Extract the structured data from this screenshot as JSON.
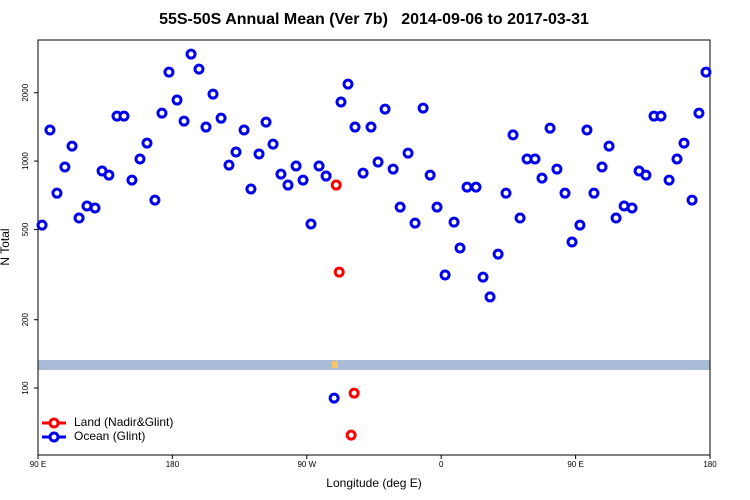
{
  "chart_data": {
    "type": "scatter",
    "title": "55S-50S Annual Mean (Ver 7b)   2014-09-06 to 2017-03-31",
    "xlabel": "Longitude (deg E)",
    "ylabel": "N Total",
    "xlim": [
      90,
      540
    ],
    "xticks": [
      {
        "value": 90,
        "label": "90 E"
      },
      180,
      {
        "value": 270,
        "label": "90 W"
      },
      {
        "value": 360,
        "label": "0"
      },
      {
        "value": 450,
        "label": "90 E"
      },
      {
        "value": 540,
        "label": "180"
      }
    ],
    "ylim": [
      50.7,
      3415
    ],
    "yticks": [
      100,
      200,
      500,
      1000,
      2000
    ],
    "ylog": true,
    "legend": "lower left",
    "series": [
      {
        "name": "Land (Nadir&Glint)",
        "color": "#ff0000",
        "x": [
          289.7,
          291.7,
          301.7,
          299.7
        ],
        "values": [
          784,
          324,
          95,
          62
        ]
      },
      {
        "name": "Ocean (Glint)",
        "color": "#0000ee",
        "x": [
          92.7,
          98,
          102.7,
          108,
          112.8,
          117.5,
          122.8,
          128.2,
          132.9,
          137.5,
          142.9,
          147.6,
          152.9,
          158.3,
          163,
          168.3,
          173,
          177.7,
          183.1,
          187.8,
          192.5,
          197.8,
          202.5,
          207.2,
          212.6,
          217.9,
          222.6,
          228,
          232.6,
          238,
          242.7,
          247.4,
          252.7,
          257.4,
          262.8,
          267.5,
          272.8,
          278.2,
          282.9,
          292.9,
          297.6,
          302.3,
          307.7,
          313,
          317.7,
          322.4,
          327.8,
          332.5,
          337.8,
          342.5,
          347.9,
          352.6,
          357.2,
          362.6,
          368.6,
          372.6,
          377.3,
          383.3,
          388,
          392.7,
          398.1,
          403.4,
          408.1,
          412.8,
          417.5,
          422.8,
          427.5,
          432.9,
          437.5,
          442.9,
          447.6,
          452.9,
          457.6,
          462.3,
          467.7,
          472.4,
          477.1,
          482.5,
          487.8,
          492.5,
          497.1,
          502.5,
          507.2,
          512.6,
          517.9,
          522.6,
          528,
          532.6,
          537.3,
          288.3
        ],
        "values": [
          522,
          1371,
          722,
          942,
          1164,
          561,
          634,
          621,
          904,
          867,
          1578,
          1578,
          824,
          1021,
          1200,
          673,
          1626,
          2466,
          1857,
          1500,
          2960,
          2541,
          1412,
          1973,
          1545,
          960,
          1096,
          1371,
          753,
          1075,
          1485,
          1188,
          876,
          784,
          951,
          824,
          528,
          951,
          859,
          1820,
          2183,
          1412,
          885,
          1412,
          990,
          1693,
          922,
          627,
          1084,
          533,
          1711,
          867,
          627,
          315,
          538,
          414,
          768,
          768,
          308,
          252,
          389,
          722,
          1304,
          561,
          1021,
          1021,
          841,
          1396,
          922,
          722,
          440,
          522,
          1371,
          722,
          942,
          1164,
          561,
          634,
          621,
          904,
          867,
          1578,
          1578,
          824,
          1021,
          1200,
          673,
          1626,
          2466,
          90.3
        ]
      }
    ]
  }
}
